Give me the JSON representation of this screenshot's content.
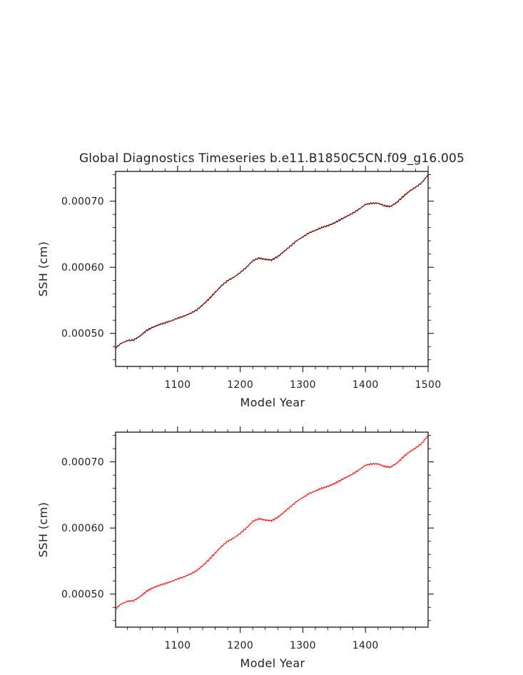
{
  "figure": {
    "title": "Global Diagnostics Timeseries b.e11.B1850C5CN.f09_g16.005"
  },
  "chart_data": [
    {
      "type": "line",
      "title": "Global Diagnostics Timeseries b.e11.B1850C5CN.f09_g16.005",
      "xlabel": "Model Year",
      "ylabel": "SSH (cm)",
      "xlim": [
        1001,
        1500
      ],
      "ylim": [
        0.00045,
        0.000745
      ],
      "xticks": [
        1100,
        1200,
        1300,
        1400,
        1500
      ],
      "xtick_labels": [
        "1100",
        "1200",
        "1300",
        "1400",
        "1500"
      ],
      "yticks": [
        0.0005,
        0.0006,
        0.0007
      ],
      "ytick_labels": [
        "0.00050",
        "0.00060",
        "0.00070"
      ],
      "grid": false,
      "color": "#7a0b0b",
      "series": [
        {
          "x": [
            1001,
            1010,
            1020,
            1030,
            1040,
            1050,
            1060,
            1070,
            1080,
            1090,
            1100,
            1110,
            1120,
            1130,
            1140,
            1150,
            1160,
            1170,
            1180,
            1190,
            1200,
            1210,
            1220,
            1230,
            1240,
            1250,
            1260,
            1270,
            1280,
            1290,
            1300,
            1310,
            1320,
            1330,
            1340,
            1350,
            1360,
            1370,
            1380,
            1390,
            1400,
            1410,
            1420,
            1430,
            1440,
            1450,
            1460,
            1470,
            1480,
            1490,
            1500
          ],
          "values": [
            0.000478,
            0.000485,
            0.000489,
            0.00049,
            0.000496,
            0.000504,
            0.000509,
            0.000513,
            0.000516,
            0.000519,
            0.000523,
            0.000526,
            0.00053,
            0.000535,
            0.000543,
            0.000552,
            0.000562,
            0.000572,
            0.00058,
            0.000585,
            0.000592,
            0.0006,
            0.00061,
            0.000614,
            0.000612,
            0.000611,
            0.000616,
            0.000624,
            0.000632,
            0.00064,
            0.000646,
            0.000652,
            0.000656,
            0.00066,
            0.000663,
            0.000667,
            0.000672,
            0.000677,
            0.000682,
            0.000688,
            0.000695,
            0.000697,
            0.000697,
            0.000693,
            0.000692,
            0.000698,
            0.000707,
            0.000715,
            0.000721,
            0.000728,
            0.00074
          ]
        }
      ]
    },
    {
      "type": "line",
      "xlabel": "Model Year",
      "ylabel": "SSH (cm)",
      "xlim": [
        1001,
        1500
      ],
      "ylim": [
        0.00045,
        0.000745
      ],
      "xticks": [
        1100,
        1200,
        1300,
        1400
      ],
      "xtick_labels": [
        "1100",
        "1200",
        "1300",
        "1400"
      ],
      "yticks": [
        0.0005,
        0.0006,
        0.0007
      ],
      "ytick_labels": [
        "0.00050",
        "0.00060",
        "0.00070"
      ],
      "grid": false,
      "color": "#ff2020",
      "series": [
        {
          "x": [
            1001,
            1010,
            1020,
            1030,
            1040,
            1050,
            1060,
            1070,
            1080,
            1090,
            1100,
            1110,
            1120,
            1130,
            1140,
            1150,
            1160,
            1170,
            1180,
            1190,
            1200,
            1210,
            1220,
            1230,
            1240,
            1250,
            1260,
            1270,
            1280,
            1290,
            1300,
            1310,
            1320,
            1330,
            1340,
            1350,
            1360,
            1370,
            1380,
            1390,
            1400,
            1410,
            1420,
            1430,
            1440,
            1450,
            1460,
            1470,
            1480,
            1490,
            1500
          ],
          "values": [
            0.000478,
            0.000485,
            0.000489,
            0.00049,
            0.000496,
            0.000504,
            0.000509,
            0.000513,
            0.000516,
            0.000519,
            0.000523,
            0.000526,
            0.00053,
            0.000535,
            0.000543,
            0.000552,
            0.000562,
            0.000572,
            0.00058,
            0.000585,
            0.000592,
            0.0006,
            0.00061,
            0.000614,
            0.000612,
            0.000611,
            0.000616,
            0.000624,
            0.000632,
            0.00064,
            0.000646,
            0.000652,
            0.000656,
            0.00066,
            0.000663,
            0.000667,
            0.000672,
            0.000677,
            0.000682,
            0.000688,
            0.000695,
            0.000697,
            0.000697,
            0.000693,
            0.000692,
            0.000698,
            0.000707,
            0.000715,
            0.000721,
            0.000728,
            0.00074
          ]
        }
      ]
    }
  ]
}
